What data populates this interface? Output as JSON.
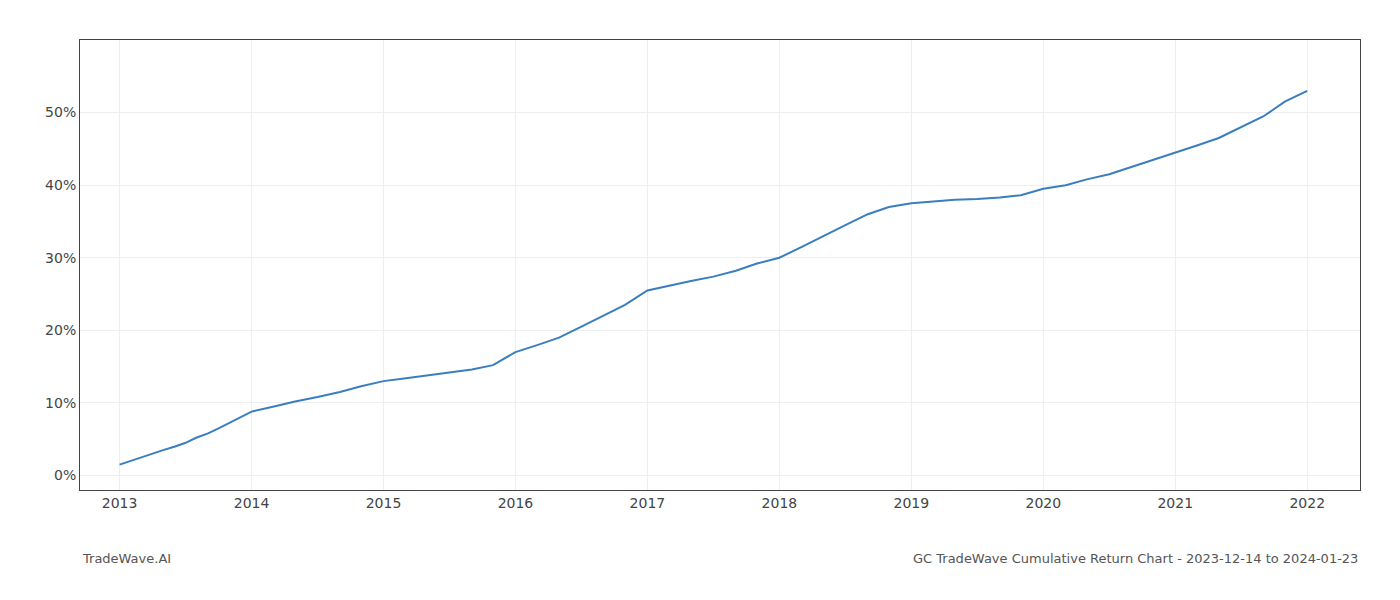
{
  "chart_data": {
    "type": "line",
    "annotations": [
      "TradeWave.AI",
      "GC TradeWave Cumulative Return Chart - 2023-12-14 to 2024-01-23"
    ],
    "x": [
      2013.0,
      2013.08,
      2013.17,
      2013.25,
      2013.33,
      2013.42,
      2013.5,
      2013.58,
      2013.67,
      2013.75,
      2013.83,
      2013.92,
      2014.0,
      2014.17,
      2014.33,
      2014.5,
      2014.67,
      2014.83,
      2015.0,
      2015.17,
      2015.33,
      2015.5,
      2015.67,
      2015.83,
      2016.0,
      2016.17,
      2016.33,
      2016.5,
      2016.67,
      2016.83,
      2017.0,
      2017.17,
      2017.33,
      2017.5,
      2017.67,
      2017.83,
      2018.0,
      2018.17,
      2018.33,
      2018.5,
      2018.67,
      2018.83,
      2019.0,
      2019.17,
      2019.33,
      2019.5,
      2019.67,
      2019.83,
      2020.0,
      2020.17,
      2020.33,
      2020.5,
      2020.67,
      2020.83,
      2021.0,
      2021.17,
      2021.33,
      2021.5,
      2021.67,
      2021.83,
      2022.0
    ],
    "values": [
      1.5,
      2.0,
      2.5,
      3.0,
      3.5,
      4.0,
      4.5,
      5.2,
      5.8,
      6.5,
      7.2,
      8.0,
      8.8,
      9.5,
      10.2,
      10.8,
      11.5,
      12.3,
      13.0,
      13.4,
      13.8,
      14.2,
      14.6,
      15.2,
      17.0,
      18.0,
      19.0,
      20.5,
      22.0,
      23.5,
      25.5,
      26.2,
      26.8,
      27.4,
      28.2,
      29.2,
      30.0,
      31.5,
      33.0,
      34.5,
      36.0,
      37.0,
      37.5,
      37.8,
      38.0,
      38.1,
      38.3,
      38.6,
      39.5,
      40.0,
      40.8,
      41.5,
      42.5,
      43.5,
      44.5,
      45.5,
      46.5,
      48.0,
      49.5,
      51.5,
      53.0
    ],
    "color": "#3a7ebf",
    "xlim": [
      2012.7,
      2022.4
    ],
    "xticks": [
      2013,
      2014,
      2015,
      2016,
      2017,
      2018,
      2019,
      2020,
      2021,
      2022
    ],
    "ylim": [
      -2,
      60
    ],
    "yticks": [
      {
        "value": 0,
        "label": "0%"
      },
      {
        "value": 10,
        "label": "10%"
      },
      {
        "value": 20,
        "label": "20%"
      },
      {
        "value": 30,
        "label": "30%"
      },
      {
        "value": 40,
        "label": "40%"
      },
      {
        "value": 50,
        "label": "50%"
      }
    ],
    "grid": true
  }
}
